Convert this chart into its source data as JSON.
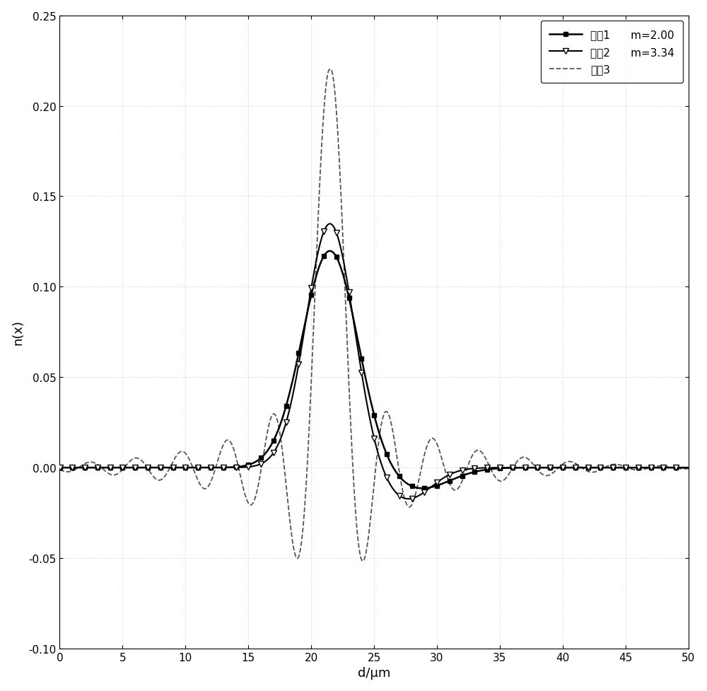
{
  "title": "",
  "xlabel": "d/μm",
  "ylabel": "n(x)",
  "xlim": [
    0,
    50
  ],
  "ylim": [
    -0.1,
    0.25
  ],
  "xticks": [
    0,
    5,
    10,
    15,
    20,
    25,
    30,
    35,
    40,
    45,
    50
  ],
  "yticks": [
    -0.1,
    -0.05,
    0,
    0.05,
    0.1,
    0.15,
    0.2,
    0.25
  ],
  "curve1_label": "曲线1",
  "curve1_m_label": "m=2.00",
  "curve2_label": "曲线2",
  "curve2_m_label": "m=3.34",
  "curve3_label": "曲线3",
  "curve1_color": "#000000",
  "curve2_color": "#000000",
  "curve3_color": "#555555",
  "background_color": "#ffffff",
  "legend_fontsize": 11,
  "axis_fontsize": 13,
  "tick_fontsize": 11,
  "figsize": [
    10.0,
    9.78
  ],
  "dpi": 100
}
